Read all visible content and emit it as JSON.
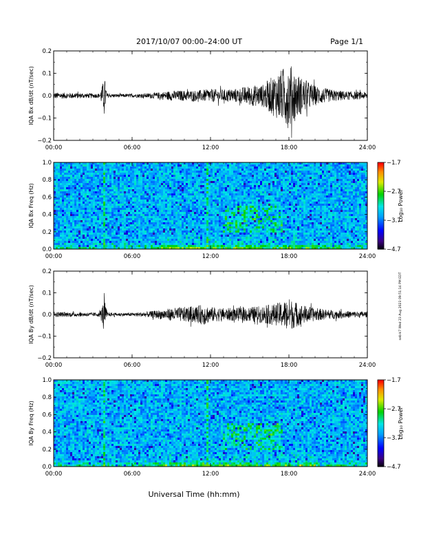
{
  "header": {
    "title": "2017/10/07  00:00–24:00 UT",
    "page": "Page 1/1"
  },
  "side_note": "seb-k7 Wed 23 Aug 2023 09:51:14 PM EDT",
  "chart_data": [
    {
      "type": "line",
      "ylabel": "IQA Bx dB/dt (nT/sec)",
      "ylim": [
        -0.2,
        0.2
      ],
      "yticks": [
        0.2,
        0.1,
        0.0,
        -0.1,
        -0.2
      ],
      "ytick_labels": [
        "0.2",
        "0.1",
        "0.0",
        "−0.1",
        "−0.2"
      ],
      "xlim": [
        0,
        24
      ],
      "xticks": [
        0,
        6,
        12,
        18,
        24
      ],
      "xtick_labels": [
        "00:00",
        "06:00",
        "12:00",
        "18:00",
        "24:00"
      ],
      "xlabel": "",
      "series": [
        {
          "x_hours": [
            0,
            1,
            2,
            3,
            3.5,
            3.9,
            4.1,
            4.5,
            5,
            6,
            7,
            8,
            9,
            10,
            11,
            12,
            13,
            14,
            15,
            16,
            17,
            17.5,
            18,
            18.5,
            19,
            20,
            21,
            22,
            23,
            24
          ],
          "amplitude": [
            0.015,
            0.013,
            0.012,
            0.01,
            0.01,
            0.08,
            0.01,
            0.008,
            0.008,
            0.008,
            0.01,
            0.015,
            0.022,
            0.024,
            0.024,
            0.03,
            0.028,
            0.032,
            0.045,
            0.05,
            0.1,
            0.12,
            0.15,
            0.11,
            0.08,
            0.045,
            0.03,
            0.022,
            0.018,
            0.016
          ]
        }
      ]
    },
    {
      "type": "heatmap",
      "ylabel": "IQA Bx Freq (Hz)",
      "ylim": [
        0.0,
        1.0
      ],
      "yticks": [
        1.0,
        0.8,
        0.6,
        0.4,
        0.2,
        0.0
      ],
      "ytick_labels": [
        "1.0",
        "0.8",
        "0.6",
        "0.4",
        "0.2",
        "0.0"
      ],
      "xlim": [
        0,
        24
      ],
      "xticks": [
        0,
        6,
        12,
        18,
        24
      ],
      "xtick_labels": [
        "00:00",
        "06:00",
        "12:00",
        "18:00",
        "24:00"
      ],
      "colorbar": {
        "label": "Log₁₀ Power",
        "range": [
          -4.7,
          -1.7
        ],
        "ticks": [
          -1.7,
          -2.7,
          -3.7,
          -4.7
        ],
        "tick_labels": [
          "−1.7",
          "−2.7",
          "−3.7",
          "−4.7"
        ]
      },
      "features": {
        "vertical_lines_hours": [
          3.8,
          11.7
        ],
        "patch_hours": [
          13,
          17.5
        ],
        "patch_freq": [
          0.2,
          0.5
        ]
      }
    },
    {
      "type": "line",
      "ylabel": "IQA By dB/dt (nT/sec)",
      "ylim": [
        -0.2,
        0.2
      ],
      "yticks": [
        0.2,
        0.1,
        0.0,
        -0.1,
        -0.2
      ],
      "ytick_labels": [
        "0.2",
        "0.1",
        "0.0",
        "−0.1",
        "−0.2"
      ],
      "xlim": [
        0,
        24
      ],
      "xticks": [
        0,
        6,
        12,
        18,
        24
      ],
      "xtick_labels": [
        "00:00",
        "06:00",
        "12:00",
        "18:00",
        "24:00"
      ],
      "xlabel": "",
      "series": [
        {
          "x_hours": [
            0,
            1,
            2,
            3,
            3.5,
            3.9,
            4.1,
            4.5,
            5,
            6,
            7,
            8,
            9,
            10,
            11,
            11.5,
            12,
            13,
            14,
            15,
            16,
            17,
            17.5,
            18,
            18.5,
            19,
            20,
            21,
            22,
            23,
            24
          ],
          "amplitude": [
            0.012,
            0.011,
            0.01,
            0.009,
            0.01,
            0.07,
            0.01,
            0.008,
            0.008,
            0.008,
            0.012,
            0.02,
            0.03,
            0.035,
            0.04,
            0.05,
            0.035,
            0.03,
            0.03,
            0.035,
            0.04,
            0.05,
            0.06,
            0.075,
            0.06,
            0.045,
            0.03,
            0.022,
            0.018,
            0.015,
            0.014
          ]
        }
      ]
    },
    {
      "type": "heatmap",
      "ylabel": "IQA By Freq (Hz)",
      "ylim": [
        0.0,
        1.0
      ],
      "yticks": [
        1.0,
        0.8,
        0.6,
        0.4,
        0.2,
        0.0
      ],
      "ytick_labels": [
        "1.0",
        "0.8",
        "0.6",
        "0.4",
        "0.2",
        "0.0"
      ],
      "xlim": [
        0,
        24
      ],
      "xticks": [
        0,
        6,
        12,
        18,
        24
      ],
      "xtick_labels": [
        "00:00",
        "06:00",
        "12:00",
        "18:00",
        "24:00"
      ],
      "xlabel": "Universal Time (hh:mm)",
      "colorbar": {
        "label": "Log₁₀ Power",
        "range": [
          -4.7,
          -1.7
        ],
        "ticks": [
          -1.7,
          -2.7,
          -3.7,
          -4.7
        ],
        "tick_labels": [
          "−1.7",
          "−2.7",
          "−3.7",
          "−4.7"
        ]
      },
      "features": {
        "vertical_lines_hours": [
          3.8,
          11.7
        ],
        "patch_hours": [
          13,
          17.5
        ],
        "patch_freq": [
          0.2,
          0.5
        ]
      }
    }
  ]
}
